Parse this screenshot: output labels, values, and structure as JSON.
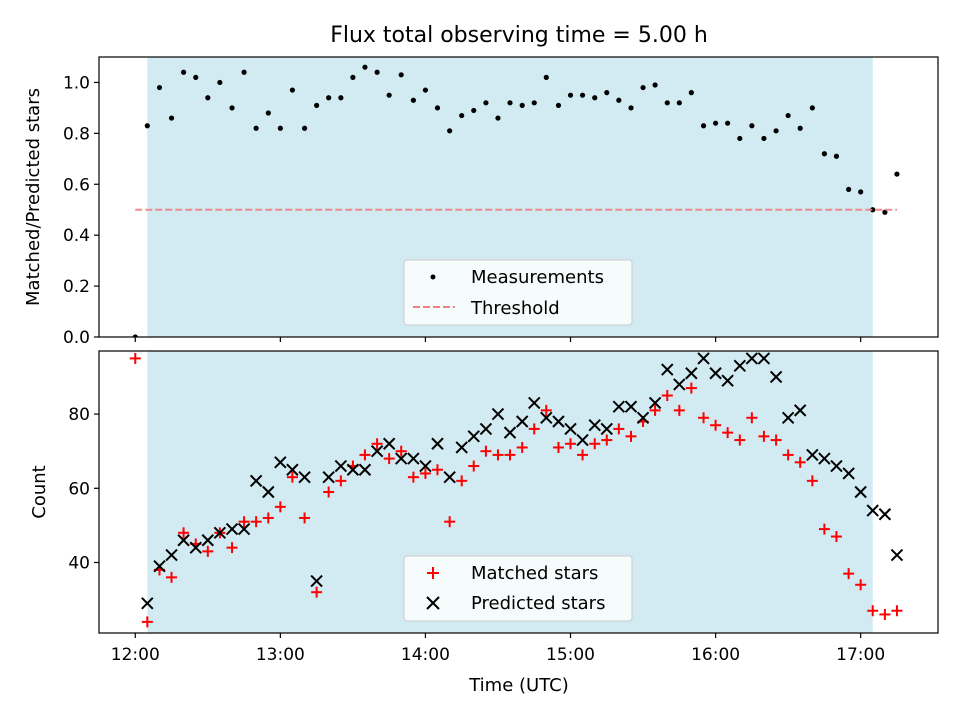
{
  "chart_data": [
    {
      "type": "scatter",
      "title": "Flux total observing time = 5.00 h",
      "xlabel": "",
      "ylabel": "Matched/Predicted stars",
      "xlim": [
        11.75,
        17.533
      ],
      "ylim": [
        0,
        1.1
      ],
      "x_ticks": [
        12,
        13,
        14,
        15,
        16,
        17
      ],
      "y_ticks": [
        0.0,
        0.2,
        0.4,
        0.6,
        0.8,
        1.0
      ],
      "y_tick_labels": [
        "0.0",
        "0.2",
        "0.4",
        "0.6",
        "0.8",
        "1.0"
      ],
      "shaded_interval": [
        12.083,
        17.083
      ],
      "shaded_color": "#add8e6",
      "legend_position": "lower center",
      "series": [
        {
          "name": "Measurements",
          "marker": "dot",
          "color": "#000000",
          "x": [
            12.0,
            12.083,
            12.167,
            12.25,
            12.333,
            12.417,
            12.5,
            12.583,
            12.667,
            12.75,
            12.833,
            12.917,
            13.0,
            13.083,
            13.167,
            13.25,
            13.333,
            13.417,
            13.5,
            13.583,
            13.667,
            13.75,
            13.833,
            13.917,
            14.0,
            14.083,
            14.167,
            14.25,
            14.333,
            14.417,
            14.5,
            14.583,
            14.667,
            14.75,
            14.833,
            14.917,
            15.0,
            15.083,
            15.167,
            15.25,
            15.333,
            15.417,
            15.5,
            15.583,
            15.667,
            15.75,
            15.833,
            15.917,
            16.0,
            16.083,
            16.167,
            16.25,
            16.333,
            16.417,
            16.5,
            16.583,
            16.667,
            16.75,
            16.833,
            16.917,
            17.0,
            17.083,
            17.167,
            17.25
          ],
          "y": [
            0.0,
            0.83,
            0.98,
            0.86,
            1.04,
            1.02,
            0.94,
            1.0,
            0.9,
            1.04,
            0.82,
            0.88,
            0.82,
            0.97,
            0.82,
            0.91,
            0.94,
            0.94,
            1.02,
            1.06,
            1.04,
            0.95,
            1.03,
            0.93,
            0.97,
            0.9,
            0.81,
            0.87,
            0.89,
            0.92,
            0.86,
            0.92,
            0.91,
            0.92,
            1.02,
            0.91,
            0.95,
            0.95,
            0.94,
            0.96,
            0.93,
            0.9,
            0.98,
            0.99,
            0.92,
            0.92,
            0.96,
            0.83,
            0.84,
            0.84,
            0.78,
            0.83,
            0.78,
            0.81,
            0.87,
            0.82,
            0.9,
            0.72,
            0.71,
            0.58,
            0.57,
            0.5,
            0.49,
            0.64
          ]
        },
        {
          "name": "Threshold",
          "style": "dashed",
          "color": "#f08080",
          "x": [
            12.0,
            17.25
          ],
          "y": [
            0.5,
            0.5
          ]
        }
      ]
    },
    {
      "type": "scatter",
      "title": "",
      "xlabel": "Time (UTC)",
      "ylabel": "Count",
      "xlim": [
        11.75,
        17.533
      ],
      "ylim": [
        21,
        97
      ],
      "x_ticks": [
        12,
        13,
        14,
        15,
        16,
        17
      ],
      "x_tick_labels": [
        "12:00",
        "13:00",
        "14:00",
        "15:00",
        "16:00",
        "17:00"
      ],
      "y_ticks": [
        40,
        60,
        80
      ],
      "y_tick_labels": [
        "40",
        "60",
        "80"
      ],
      "shaded_interval": [
        12.083,
        17.083
      ],
      "shaded_color": "#add8e6",
      "legend_position": "lower center",
      "series": [
        {
          "name": "Matched stars",
          "marker": "plus",
          "color": "#ff0000",
          "x": [
            12.0,
            12.083,
            12.167,
            12.25,
            12.333,
            12.417,
            12.5,
            12.583,
            12.667,
            12.75,
            12.833,
            12.917,
            13.0,
            13.083,
            13.167,
            13.25,
            13.333,
            13.417,
            13.5,
            13.583,
            13.667,
            13.75,
            13.833,
            13.917,
            14.0,
            14.083,
            14.167,
            14.25,
            14.333,
            14.417,
            14.5,
            14.583,
            14.667,
            14.75,
            14.833,
            14.917,
            15.0,
            15.083,
            15.167,
            15.25,
            15.333,
            15.417,
            15.5,
            15.583,
            15.667,
            15.75,
            15.833,
            15.917,
            16.0,
            16.083,
            16.167,
            16.25,
            16.333,
            16.417,
            16.5,
            16.583,
            16.667,
            16.75,
            16.833,
            16.917,
            17.0,
            17.083,
            17.167,
            17.25
          ],
          "y": [
            95,
            24,
            38,
            36,
            48,
            45,
            43,
            48,
            44,
            51,
            51,
            52,
            55,
            63,
            52,
            32,
            59,
            62,
            66,
            69,
            72,
            68,
            70,
            63,
            64,
            65,
            51,
            62,
            66,
            70,
            69,
            69,
            71,
            76,
            81,
            71,
            72,
            69,
            72,
            73,
            76,
            74,
            78,
            81,
            85,
            81,
            87,
            79,
            77,
            75,
            73,
            79,
            74,
            73,
            69,
            67,
            62,
            49,
            47,
            37,
            34,
            27,
            26,
            27
          ]
        },
        {
          "name": "Predicted stars",
          "marker": "x",
          "color": "#000000",
          "x": [
            12.083,
            12.167,
            12.25,
            12.333,
            12.417,
            12.5,
            12.583,
            12.667,
            12.75,
            12.833,
            12.917,
            13.0,
            13.083,
            13.167,
            13.25,
            13.333,
            13.417,
            13.5,
            13.583,
            13.667,
            13.75,
            13.833,
            13.917,
            14.0,
            14.083,
            14.167,
            14.25,
            14.333,
            14.417,
            14.5,
            14.583,
            14.667,
            14.75,
            14.833,
            14.917,
            15.0,
            15.083,
            15.167,
            15.25,
            15.333,
            15.417,
            15.5,
            15.583,
            15.667,
            15.75,
            15.833,
            15.917,
            16.0,
            16.083,
            16.167,
            16.25,
            16.333,
            16.417,
            16.5,
            16.583,
            16.667,
            16.75,
            16.833,
            16.917,
            17.0,
            17.083,
            17.167,
            17.25
          ],
          "y": [
            29,
            39,
            42,
            46,
            44,
            46,
            48,
            49,
            49,
            62,
            59,
            67,
            65,
            63,
            35,
            63,
            66,
            65,
            65,
            70,
            72,
            68,
            68,
            66,
            72,
            63,
            71,
            74,
            76,
            80,
            75,
            78,
            83,
            79,
            78,
            76,
            73,
            77,
            76,
            82,
            82,
            79,
            83,
            92,
            88,
            91,
            95,
            91,
            89,
            93,
            95,
            95,
            90,
            79,
            81,
            69,
            68,
            66,
            64,
            59,
            54,
            53,
            42
          ]
        }
      ]
    }
  ]
}
